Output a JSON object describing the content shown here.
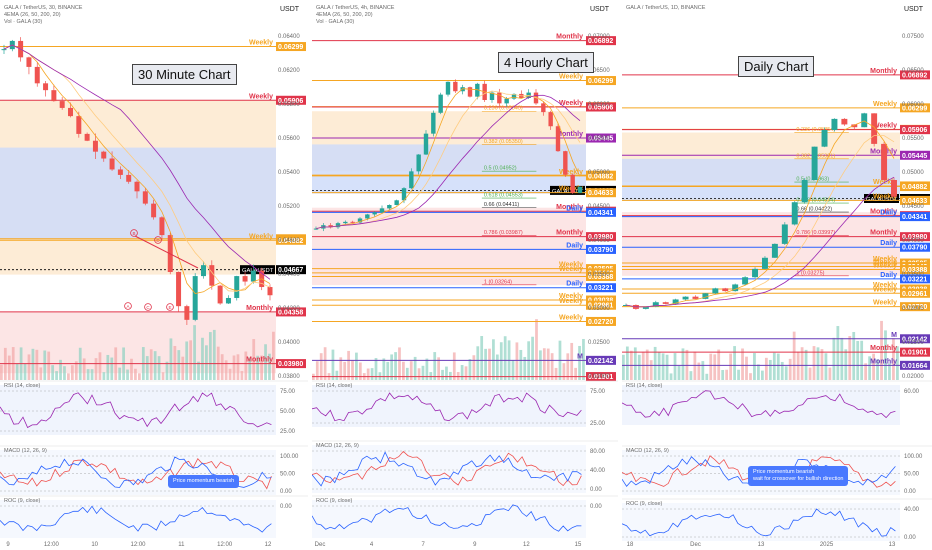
{
  "panels": [
    {
      "id": "p30m",
      "left": 0,
      "width": 308,
      "plotW": 278,
      "title": "GALA / TetherUS, 30, BINANCE",
      "sub1": "4EMA (26, 50, 200, 20)",
      "sub2": "Vol · GALA (30)",
      "currency": "USDT",
      "chart_label": "30 Minute Chart",
      "yRange": [
        0.0386,
        0.0642
      ],
      "priceTicks": [
        "0.06400",
        "0.06200",
        "0.05800",
        "0.05600",
        "0.05400",
        "0.05200",
        "0.04600",
        "0.04400",
        "0.04200",
        "0.04000",
        "0.03800"
      ],
      "bands": [
        {
          "from": 0.05906,
          "to": 0.0463,
          "color": "#fde9cf"
        },
        {
          "from": 0.0556,
          "to": 0.0489,
          "color": "#cfdcf9"
        },
        {
          "from": 0.0463,
          "to": 0.0428,
          "color": "#ffffff"
        },
        {
          "from": 0.0436,
          "to": 0.0391,
          "color": "#fbe0e0"
        }
      ],
      "levels": [
        {
          "value": 0.06299,
          "text": "0.06299",
          "color": "#f5a623",
          "tag": "Weekly"
        },
        {
          "value": 0.05906,
          "text": "0.05906",
          "color": "#e0344a",
          "tag": "Weekly"
        },
        {
          "value": 0.04893,
          "text": "0.04893",
          "color": "#f5a623",
          "tag": ""
        },
        {
          "value": 0.04882,
          "text": "0.04882",
          "color": "#f5a623",
          "tag": "Weekly"
        },
        {
          "value": 0.04667,
          "text": "0.04667",
          "color": "#000000",
          "tag": "GALAUSDT"
        },
        {
          "value": 0.04358,
          "text": "0.04358",
          "color": "#e0344a",
          "tag": "Monthly"
        },
        {
          "value": 0.0398,
          "text": "0.03980",
          "color": "#e0344a",
          "tag": "Monthly"
        }
      ],
      "price": [
        0.0628,
        0.0634,
        0.0622,
        0.0615,
        0.0603,
        0.0598,
        0.059,
        0.0585,
        0.0579,
        0.0566,
        0.0561,
        0.0553,
        0.0548,
        0.054,
        0.0536,
        0.0531,
        0.0524,
        0.0515,
        0.0505,
        0.0492,
        0.0465,
        0.044,
        0.043,
        0.0462,
        0.047,
        0.0455,
        0.0442,
        0.0446,
        0.0462,
        0.0458,
        0.0466,
        0.0454,
        0.0448
      ],
      "xTicks": [
        "9",
        "12:00",
        "10",
        "12:00",
        "11",
        "12:00",
        "12"
      ],
      "indicators": [
        {
          "name": "RSI (14, close)",
          "top": 385,
          "h": 50,
          "ticks": [
            "75.00",
            "50.00",
            "25.00"
          ]
        },
        {
          "name": "MACD (12, 26, 9)",
          "top": 450,
          "h": 45,
          "ticks": [
            "100.00",
            "50.00",
            "0.00"
          ]
        },
        {
          "name": "ROC (9, close)",
          "top": 500,
          "h": 38,
          "ticks": [
            "0.00"
          ]
        }
      ],
      "note": {
        "lines": [
          "Price momentum bearish"
        ],
        "x": 168,
        "y": 475
      },
      "swing_labels": [
        "B",
        "D",
        "A",
        "C",
        "E"
      ]
    },
    {
      "id": "p4h",
      "left": 312,
      "width": 306,
      "plotW": 276,
      "title": "GALA / TetherUS, 4h, BINANCE",
      "sub1": "4EMA (26, 50, 200, 20)",
      "sub2": "Vol · GALA (30)",
      "currency": "USDT",
      "chart_label": "4 Hourly Chart",
      "yRange": [
        0.0185,
        0.0705
      ],
      "priceTicks": [
        "0.07000",
        "0.06500",
        "0.06000",
        "0.05500",
        "0.05000",
        "0.04500",
        "0.04000",
        "0.03500",
        "0.03000",
        "0.02500",
        "0.02000"
      ],
      "bands": [
        {
          "from": 0.05843,
          "to": 0.04952,
          "color": "#fde9cf"
        },
        {
          "from": 0.0535,
          "to": 0.0462,
          "color": "#cfdcf9"
        },
        {
          "from": 0.0441,
          "to": 0.0326,
          "color": "#fbe0e0"
        }
      ],
      "fibs": [
        {
          "value": 0.05843,
          "text": "0.236 (0.05843)",
          "color": "#f5a623"
        },
        {
          "value": 0.0535,
          "text": "0.382 (0.05350)",
          "color": "#f5a623"
        },
        {
          "value": 0.04952,
          "text": "0.5 (0.04952)",
          "color": "#4caf50"
        },
        {
          "value": 0.04553,
          "text": "0.618 (0.04553)",
          "color": "#4caf50"
        },
        {
          "value": 0.04411,
          "text": "0.66 (0.04411)",
          "color": "#333333"
        },
        {
          "value": 0.04,
          "text": "0.786 (0.03987)",
          "color": "#e0344a"
        },
        {
          "value": 0.03264,
          "text": "1 (0.03264)",
          "color": "#e0344a"
        }
      ],
      "levels": [
        {
          "value": 0.06892,
          "text": "0.06892",
          "color": "#e0344a",
          "tag": "Monthly"
        },
        {
          "value": 0.06299,
          "text": "0.06299",
          "color": "#f5a623",
          "tag": "Weekly"
        },
        {
          "value": 0.05911,
          "text": "0.05911",
          "color": "#f5a623",
          "tag": ""
        },
        {
          "value": 0.05906,
          "text": "0.05906",
          "color": "#e0344a",
          "tag": "Weekly"
        },
        {
          "value": 0.05445,
          "text": "0.05445",
          "color": "#9b27b0",
          "tag": "Monthly"
        },
        {
          "value": 0.04893,
          "text": "0.04893",
          "color": "#f5a623",
          "tag": ""
        },
        {
          "value": 0.04882,
          "text": "0.04882",
          "color": "#f5a623",
          "tag": "Weekly"
        },
        {
          "value": 0.04667,
          "text": "0.04667",
          "color": "#000000",
          "tag": "GALAUSDT"
        },
        {
          "value": 0.04633,
          "text": "0.04633",
          "color": "#f5a623",
          "tag": "Weekly"
        },
        {
          "value": 0.04358,
          "text": "0.04358",
          "color": "#e0344a",
          "tag": "Monthly"
        },
        {
          "value": 0.04341,
          "text": "0.04341",
          "color": "#2962ff",
          "tag": "Daily"
        },
        {
          "value": 0.0398,
          "text": "0.03980",
          "color": "#e0344a",
          "tag": "Monthly"
        },
        {
          "value": 0.0379,
          "text": "0.03790",
          "color": "#2962ff",
          "tag": "Daily"
        },
        {
          "value": 0.03505,
          "text": "0.03505",
          "color": "#f5a623",
          "tag": "Weekly"
        },
        {
          "value": 0.03442,
          "text": "0.03442",
          "color": "#f5a623",
          "tag": "Weekly"
        },
        {
          "value": 0.03388,
          "text": "0.03388",
          "color": "#f5a623",
          "tag": ""
        },
        {
          "value": 0.03221,
          "text": "0.03221",
          "color": "#2962ff",
          "tag": "Daily"
        },
        {
          "value": 0.03038,
          "text": "0.03038",
          "color": "#f5a623",
          "tag": "Weekly"
        },
        {
          "value": 0.02961,
          "text": "0.02961",
          "color": "#f5a623",
          "tag": "Weekly"
        },
        {
          "value": 0.0272,
          "text": "0.02720",
          "color": "#f5a623",
          "tag": "Weekly"
        },
        {
          "value": 0.02142,
          "text": "0.02142",
          "color": "#673ab7",
          "tag": "M"
        },
        {
          "value": 0.01901,
          "text": "0.01901",
          "color": "#e0344a",
          "tag": ""
        }
      ],
      "price": [
        0.041,
        0.0415,
        0.0412,
        0.0418,
        0.042,
        0.0419,
        0.0425,
        0.0431,
        0.0434,
        0.044,
        0.0445,
        0.0452,
        0.047,
        0.0495,
        0.052,
        0.0551,
        0.0582,
        0.0609,
        0.0628,
        0.0614,
        0.062,
        0.0606,
        0.0625,
        0.0601,
        0.0612,
        0.0596,
        0.0603,
        0.061,
        0.0604,
        0.0612,
        0.0596,
        0.0583,
        0.0562,
        0.0525,
        0.049,
        0.0463,
        0.0472
      ],
      "xTicks": [
        "Dec",
        "4",
        "7",
        "9",
        "12",
        "15"
      ],
      "indicators": [
        {
          "name": "RSI (14, close)",
          "top": 385,
          "h": 42,
          "ticks": [
            "75.00",
            "25.00"
          ]
        },
        {
          "name": "MACD (12, 26, 9)",
          "top": 445,
          "h": 48,
          "ticks": [
            "80.00",
            "40.00",
            "0.00"
          ]
        },
        {
          "name": "ROC (9, close)",
          "top": 500,
          "h": 38,
          "ticks": [
            "0.00"
          ]
        }
      ]
    },
    {
      "id": "p1d",
      "left": 622,
      "width": 310,
      "plotW": 276,
      "title": "GALA / TetherUS, 1D, BINANCE",
      "sub1": "",
      "sub2": "",
      "currency": "USDT",
      "chart_label": "Daily Chart",
      "yRange": [
        0.014,
        0.077
      ],
      "priceTicks": [
        "0.07500",
        "0.06500",
        "0.06000",
        "0.05500",
        "0.05000",
        "0.04500",
        "0.04000",
        "0.03500",
        "0.03000",
        "0.02500",
        "0.02000"
      ],
      "bands": [
        {
          "from": 0.05854,
          "to": 0.04963,
          "color": "#fde9cf"
        },
        {
          "from": 0.05381,
          "to": 0.04622,
          "color": "#cfdcf9"
        },
        {
          "from": 0.04422,
          "to": 0.03275,
          "color": "#fbe0e0"
        }
      ],
      "fibs": [
        {
          "value": 0.05854,
          "text": "0.236 (0.05854)",
          "color": "#f5a623"
        },
        {
          "value": 0.05381,
          "text": "0.382 (0.05381)",
          "color": "#f5a623"
        },
        {
          "value": 0.04963,
          "text": "0.5 (0.04963)",
          "color": "#4caf50"
        },
        {
          "value": 0.04584,
          "text": "0.618 (0.04584)",
          "color": "#4caf50"
        },
        {
          "value": 0.04422,
          "text": "0.66 (0.04422)",
          "color": "#333333"
        },
        {
          "value": 0.04,
          "text": "0.786 (0.03997)",
          "color": "#e0344a"
        },
        {
          "value": 0.03275,
          "text": "1 (0.03275)",
          "color": "#e0344a"
        }
      ],
      "levels": [
        {
          "value": 0.06892,
          "text": "0.06892",
          "color": "#e0344a",
          "tag": "Monthly"
        },
        {
          "value": 0.06299,
          "text": "0.06299",
          "color": "#f5a623",
          "tag": "Weekly"
        },
        {
          "value": 0.05911,
          "text": "0.05911",
          "color": "#f5a623",
          "tag": ""
        },
        {
          "value": 0.05906,
          "text": "0.05906",
          "color": "#e0344a",
          "tag": "Weekly"
        },
        {
          "value": 0.05445,
          "text": "0.05445",
          "color": "#9b27b0",
          "tag": "Monthly"
        },
        {
          "value": 0.04893,
          "text": "0.04893",
          "color": "#f5a623",
          "tag": "Weekly"
        },
        {
          "value": 0.04882,
          "text": "0.04882",
          "color": "#f5a623",
          "tag": ""
        },
        {
          "value": 0.04667,
          "text": "0.04667",
          "color": "#000000",
          "tag": "GALAUSDT"
        },
        {
          "value": 0.04633,
          "text": "0.04633",
          "color": "#f5a623",
          "tag": "Weekly"
        },
        {
          "value": 0.04358,
          "text": "0.04358",
          "color": "#e0344a",
          "tag": "Monthly"
        },
        {
          "value": 0.04341,
          "text": "0.04341",
          "color": "#2962ff",
          "tag": "Daily"
        },
        {
          "value": 0.0398,
          "text": "0.03980",
          "color": "#e0344a",
          "tag": "Monthly"
        },
        {
          "value": 0.0379,
          "text": "0.03790",
          "color": "#2962ff",
          "tag": "Daily"
        },
        {
          "value": 0.03505,
          "text": "0.03505",
          "color": "#f5a623",
          "tag": "Weekly"
        },
        {
          "value": 0.03442,
          "text": "0.03442",
          "color": "#f5a623",
          "tag": "Weekly"
        },
        {
          "value": 0.03388,
          "text": "0.03388",
          "color": "#f5a623",
          "tag": "Weekly"
        },
        {
          "value": 0.03221,
          "text": "0.03221",
          "color": "#2962ff",
          "tag": "Daily"
        },
        {
          "value": 0.03038,
          "text": "0.03038",
          "color": "#f5a623",
          "tag": "Weekly"
        },
        {
          "value": 0.02961,
          "text": "0.02961",
          "color": "#f5a623",
          "tag": "Weekly"
        },
        {
          "value": 0.0272,
          "text": "0.02720",
          "color": "#f5a623",
          "tag": "Weekly"
        },
        {
          "value": 0.02142,
          "text": "0.02142",
          "color": "#673ab7",
          "tag": "M"
        },
        {
          "value": 0.01901,
          "text": "0.01901",
          "color": "#e0344a",
          "tag": "Monthly"
        },
        {
          "value": 0.01664,
          "text": "0.01664",
          "color": "#673ab7",
          "tag": "Monthly"
        }
      ],
      "price": [
        0.0275,
        0.0268,
        0.0272,
        0.028,
        0.0277,
        0.0285,
        0.029,
        0.0286,
        0.0296,
        0.0305,
        0.03,
        0.0312,
        0.0325,
        0.034,
        0.036,
        0.0385,
        0.042,
        0.046,
        0.05,
        0.056,
        0.059,
        0.061,
        0.06,
        0.0595,
        0.062,
        0.0565,
        0.05,
        0.047
      ],
      "xTicks": [
        "18",
        "Dec",
        "13",
        "2025",
        "13"
      ],
      "indicators": [
        {
          "name": "RSI (14, close)",
          "top": 385,
          "h": 40,
          "ticks": [
            "60.00"
          ]
        },
        {
          "name": "MACD (12, 26, 9)",
          "top": 450,
          "h": 45,
          "ticks": [
            "100.00",
            "50.00",
            "0.00"
          ]
        },
        {
          "name": "ROC (9, close)",
          "top": 503,
          "h": 38,
          "ticks": [
            "40.00",
            "0.00"
          ]
        }
      ],
      "note": {
        "lines": [
          "Price momentum bearish",
          "wait for crossover for bullish direction"
        ],
        "x": 126,
        "y": 466
      }
    }
  ]
}
